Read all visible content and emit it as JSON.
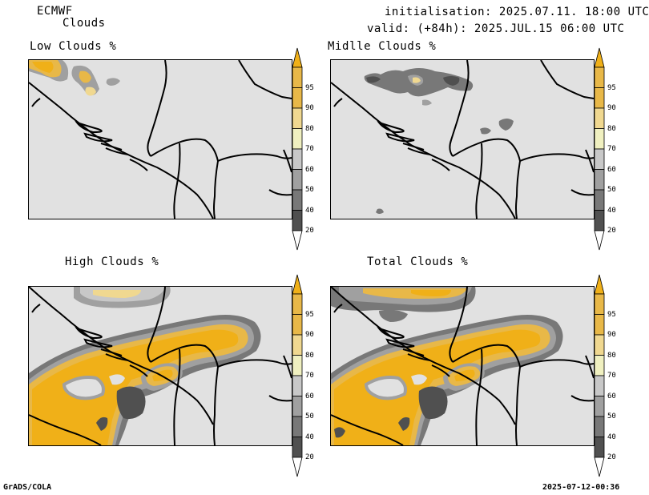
{
  "header": {
    "model": "ECMWF",
    "field": "Clouds",
    "init": "initialisation: 2025.07.11. 18:00 UTC",
    "valid": "valid: (+84h): 2025.JUL.15 06:00 UTC"
  },
  "panels": [
    {
      "title": "Low Clouds %"
    },
    {
      "title": "Midlle Clouds %"
    },
    {
      "title": "High Clouds %"
    },
    {
      "title": "Total Clouds %"
    }
  ],
  "colorbar": {
    "labels": [
      "95",
      "90",
      "80",
      "70",
      "60",
      "50",
      "40",
      "20"
    ],
    "colors": {
      "c95": "#f0b018",
      "c90": "#e8b848",
      "c80": "#f0d890",
      "c70": "#f0f0c0",
      "c60": "#c8c8c8",
      "c50": "#a0a0a0",
      "c40": "#787878",
      "c20": "#505050",
      "below": "#ffffff",
      "background": "#e1e1e1"
    }
  },
  "footer": {
    "left": "GrADS/COLA",
    "right": "2025-07-12-00:36"
  }
}
